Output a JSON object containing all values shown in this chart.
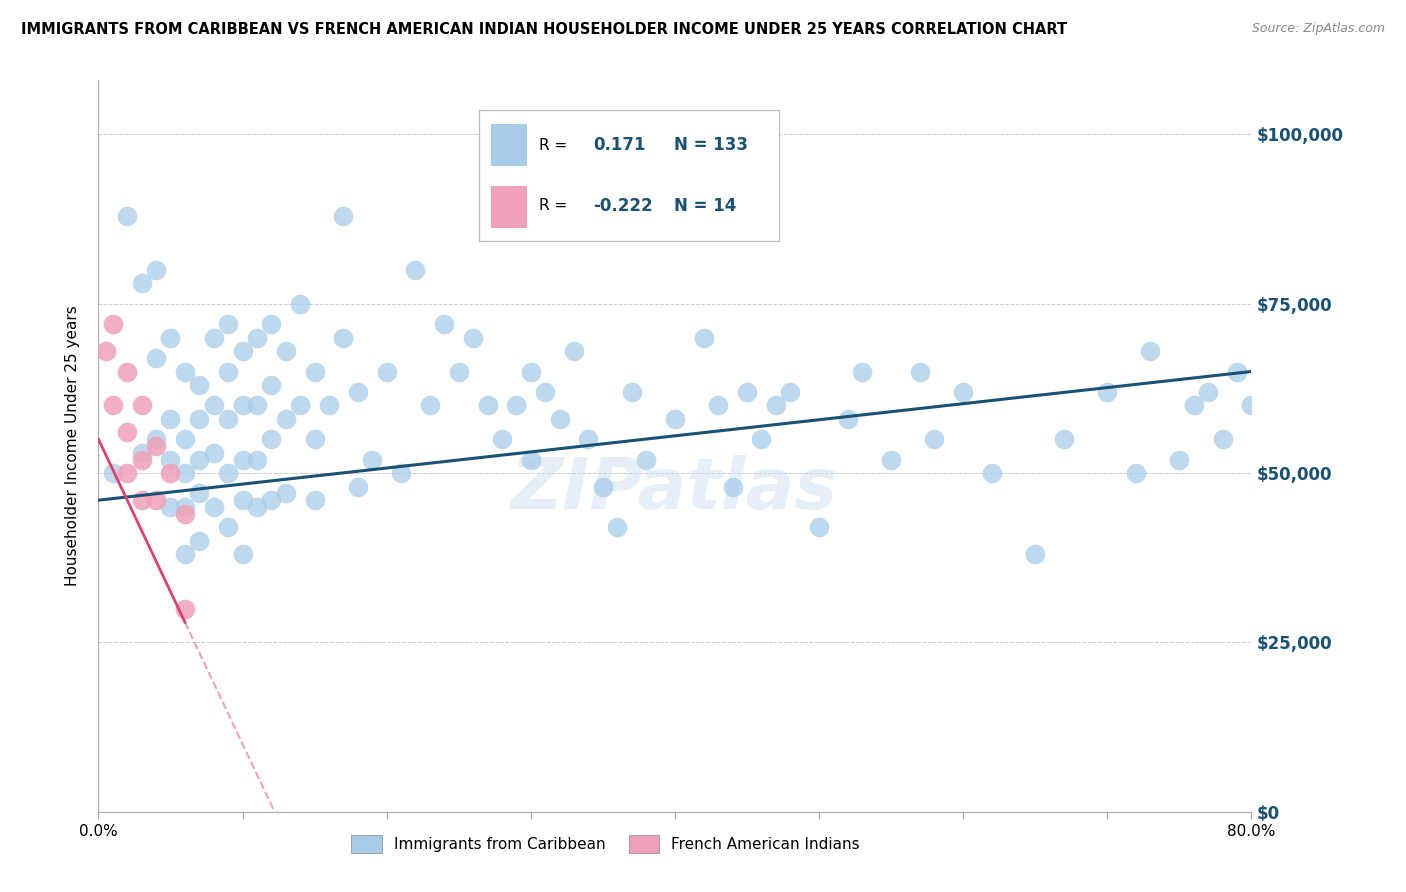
{
  "title": "IMMIGRANTS FROM CARIBBEAN VS FRENCH AMERICAN INDIAN HOUSEHOLDER INCOME UNDER 25 YEARS CORRELATION CHART",
  "source": "Source: ZipAtlas.com",
  "ylabel": "Householder Income Under 25 years",
  "ytick_values": [
    0,
    25000,
    50000,
    75000,
    100000
  ],
  "ytick_labels_right": [
    "$0",
    "$25,000",
    "$50,000",
    "$75,000",
    "$100,000"
  ],
  "xmin": 0.0,
  "xmax": 0.8,
  "ymin": 0,
  "ymax": 108000,
  "r_blue": 0.171,
  "n_blue": 133,
  "r_pink": -0.222,
  "n_pink": 14,
  "blue_color": "#A8CCE8",
  "pink_color": "#F0A0B8",
  "blue_line_color": "#1A5276",
  "pink_line_color": "#E0406A",
  "pink_dash_color": "#F0A0B8",
  "watermark": "ZIPatlas",
  "legend_label_blue": "Immigrants from Caribbean",
  "legend_label_pink": "French American Indians",
  "blue_scatter_x": [
    0.01,
    0.02,
    0.03,
    0.03,
    0.04,
    0.04,
    0.04,
    0.05,
    0.05,
    0.05,
    0.05,
    0.06,
    0.06,
    0.06,
    0.06,
    0.06,
    0.07,
    0.07,
    0.07,
    0.07,
    0.07,
    0.08,
    0.08,
    0.08,
    0.08,
    0.09,
    0.09,
    0.09,
    0.09,
    0.09,
    0.1,
    0.1,
    0.1,
    0.1,
    0.1,
    0.11,
    0.11,
    0.11,
    0.11,
    0.12,
    0.12,
    0.12,
    0.12,
    0.13,
    0.13,
    0.13,
    0.14,
    0.14,
    0.15,
    0.15,
    0.15,
    0.16,
    0.17,
    0.17,
    0.18,
    0.18,
    0.19,
    0.2,
    0.21,
    0.22,
    0.23,
    0.24,
    0.25,
    0.26,
    0.27,
    0.28,
    0.29,
    0.3,
    0.3,
    0.31,
    0.32,
    0.33,
    0.34,
    0.35,
    0.36,
    0.37,
    0.38,
    0.4,
    0.42,
    0.43,
    0.44,
    0.45,
    0.46,
    0.47,
    0.48,
    0.5,
    0.52,
    0.53,
    0.55,
    0.57,
    0.58,
    0.6,
    0.62,
    0.65,
    0.67,
    0.7,
    0.72,
    0.73,
    0.75,
    0.77,
    0.76,
    0.78,
    0.79,
    0.8
  ],
  "blue_scatter_y": [
    50000,
    88000,
    78000,
    53000,
    80000,
    67000,
    55000,
    70000,
    58000,
    52000,
    45000,
    65000,
    55000,
    50000,
    45000,
    38000,
    63000,
    58000,
    52000,
    47000,
    40000,
    70000,
    60000,
    53000,
    45000,
    72000,
    65000,
    58000,
    50000,
    42000,
    68000,
    60000,
    52000,
    46000,
    38000,
    70000,
    60000,
    52000,
    45000,
    72000,
    63000,
    55000,
    46000,
    68000,
    58000,
    47000,
    75000,
    60000,
    65000,
    55000,
    46000,
    60000,
    88000,
    70000,
    62000,
    48000,
    52000,
    65000,
    50000,
    80000,
    60000,
    72000,
    65000,
    70000,
    60000,
    55000,
    60000,
    65000,
    52000,
    62000,
    58000,
    68000,
    55000,
    48000,
    42000,
    62000,
    52000,
    58000,
    70000,
    60000,
    48000,
    62000,
    55000,
    60000,
    62000,
    42000,
    58000,
    65000,
    52000,
    65000,
    55000,
    62000,
    50000,
    38000,
    55000,
    62000,
    50000,
    68000,
    52000,
    62000,
    60000,
    55000,
    65000,
    60000
  ],
  "pink_scatter_x": [
    0.005,
    0.01,
    0.01,
    0.02,
    0.02,
    0.02,
    0.03,
    0.03,
    0.03,
    0.04,
    0.04,
    0.05,
    0.06,
    0.06
  ],
  "pink_scatter_y": [
    68000,
    72000,
    60000,
    65000,
    56000,
    50000,
    60000,
    52000,
    46000,
    54000,
    46000,
    50000,
    44000,
    30000
  ]
}
